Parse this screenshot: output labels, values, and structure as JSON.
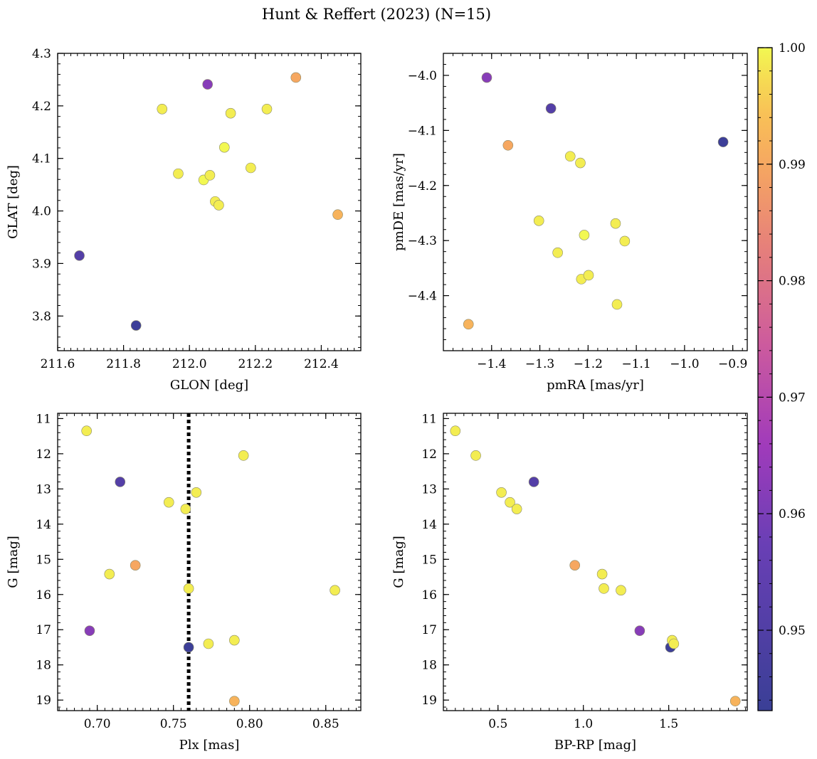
{
  "figure": {
    "title": "Hunt & Reffert (2023) (N=15)"
  },
  "colorbar": {
    "min": 0.9431,
    "max": 1.0,
    "ticks": [
      0.95,
      0.96,
      0.97,
      0.98,
      0.99,
      1.0
    ],
    "tick_labels": [
      "0.95",
      "0.96",
      "0.97",
      "0.98",
      "0.99",
      "1.00"
    ],
    "colormap": "plasma"
  },
  "chart_data": [
    {
      "type": "scatter",
      "xlabel": "GLON [deg]",
      "ylabel": "GLAT [deg]",
      "xlim": [
        211.6,
        212.52
      ],
      "ylim": [
        3.734,
        4.3
      ],
      "x_ticks": [
        211.6,
        211.8,
        212.0,
        212.2,
        212.4
      ],
      "x_tick_labels": [
        "211.6",
        "211.8",
        "212.0",
        "212.2",
        "212.4"
      ],
      "y_ticks": [
        3.8,
        3.9,
        4.0,
        4.1,
        4.2,
        4.3
      ],
      "y_tick_labels": [
        "3.8",
        "3.9",
        "4.0",
        "4.1",
        "4.2",
        "4.3"
      ],
      "x_minor": 0.02,
      "y_minor": 0.02,
      "y_inverted": false,
      "points": [
        {
          "x": 211.666,
          "y": 3.915,
          "c": 0.951
        },
        {
          "x": 211.838,
          "y": 3.782,
          "c": 0.944
        },
        {
          "x": 212.055,
          "y": 4.241,
          "c": 0.962
        },
        {
          "x": 212.323,
          "y": 4.254,
          "c": 0.99
        },
        {
          "x": 212.45,
          "y": 3.993,
          "c": 0.992
        },
        {
          "x": 211.917,
          "y": 4.194,
          "c": 0.999
        },
        {
          "x": 211.966,
          "y": 4.071,
          "c": 0.999
        },
        {
          "x": 212.043,
          "y": 4.059,
          "c": 1.0
        },
        {
          "x": 212.062,
          "y": 4.068,
          "c": 0.999
        },
        {
          "x": 212.078,
          "y": 4.018,
          "c": 0.999
        },
        {
          "x": 212.089,
          "y": 4.011,
          "c": 0.999
        },
        {
          "x": 212.106,
          "y": 4.121,
          "c": 1.0
        },
        {
          "x": 212.125,
          "y": 4.186,
          "c": 0.999
        },
        {
          "x": 212.186,
          "y": 4.082,
          "c": 0.999
        },
        {
          "x": 212.235,
          "y": 4.194,
          "c": 0.999
        }
      ]
    },
    {
      "type": "scatter",
      "xlabel": "pmRA [mas/yr]",
      "ylabel": "pmDE [mas/yr]",
      "xlim": [
        -1.5,
        -0.87
      ],
      "ylim": [
        -4.5,
        -3.96
      ],
      "x_ticks": [
        -1.4,
        -1.3,
        -1.2,
        -1.1,
        -1.0,
        -0.9
      ],
      "x_tick_labels": [
        "−1.4",
        "−1.3",
        "−1.2",
        "−1.1",
        "−1.0",
        "−0.9"
      ],
      "y_ticks": [
        -4.4,
        -4.3,
        -4.2,
        -4.1,
        -4.0
      ],
      "y_tick_labels": [
        "−4.4",
        "−4.3",
        "−4.2",
        "−4.1",
        "−4.0"
      ],
      "x_minor": 0.02,
      "y_minor": 0.02,
      "y_inverted": false,
      "points": [
        {
          "x": -1.41,
          "y": -4.004,
          "c": 0.962
        },
        {
          "x": -1.277,
          "y": -4.06,
          "c": 0.951
        },
        {
          "x": -0.92,
          "y": -4.121,
          "c": 0.944
        },
        {
          "x": -1.366,
          "y": -4.127,
          "c": 0.99
        },
        {
          "x": -1.448,
          "y": -4.452,
          "c": 0.992
        },
        {
          "x": -1.237,
          "y": -4.147,
          "c": 0.999
        },
        {
          "x": -1.216,
          "y": -4.159,
          "c": 0.999
        },
        {
          "x": -1.302,
          "y": -4.264,
          "c": 0.999
        },
        {
          "x": -1.263,
          "y": -4.322,
          "c": 0.999
        },
        {
          "x": -1.208,
          "y": -4.29,
          "c": 1.0
        },
        {
          "x": -1.143,
          "y": -4.269,
          "c": 0.999
        },
        {
          "x": -1.124,
          "y": -4.301,
          "c": 0.999
        },
        {
          "x": -1.214,
          "y": -4.37,
          "c": 0.999
        },
        {
          "x": -1.199,
          "y": -4.363,
          "c": 0.999
        },
        {
          "x": -1.14,
          "y": -4.416,
          "c": 0.999
        }
      ]
    },
    {
      "type": "scatter",
      "xlabel": "Plx [mas]",
      "ylabel": "G [mag]",
      "xlim": [
        0.674,
        0.873
      ],
      "ylim": [
        19.3,
        10.85
      ],
      "x_ticks": [
        0.7,
        0.75,
        0.8,
        0.85
      ],
      "x_tick_labels": [
        "0.70",
        "0.75",
        "0.80",
        "0.85"
      ],
      "y_ticks": [
        11,
        12,
        13,
        14,
        15,
        16,
        17,
        18,
        19
      ],
      "y_tick_labels": [
        "11",
        "12",
        "13",
        "14",
        "15",
        "16",
        "17",
        "18",
        "19"
      ],
      "x_minor": 0.005,
      "y_minor": 0.2,
      "y_inverted": true,
      "vline": {
        "x": 0.76,
        "style": "dotted",
        "color": "#000000"
      },
      "points": [
        {
          "x": 0.693,
          "y": 11.35,
          "c": 0.999
        },
        {
          "x": 0.796,
          "y": 12.05,
          "c": 0.999
        },
        {
          "x": 0.715,
          "y": 12.8,
          "c": 0.951
        },
        {
          "x": 0.765,
          "y": 13.1,
          "c": 0.999
        },
        {
          "x": 0.747,
          "y": 13.38,
          "c": 0.999
        },
        {
          "x": 0.758,
          "y": 13.57,
          "c": 0.999
        },
        {
          "x": 0.725,
          "y": 15.17,
          "c": 0.99
        },
        {
          "x": 0.708,
          "y": 15.42,
          "c": 0.999
        },
        {
          "x": 0.76,
          "y": 15.83,
          "c": 0.999
        },
        {
          "x": 0.856,
          "y": 15.88,
          "c": 0.999
        },
        {
          "x": 0.695,
          "y": 17.03,
          "c": 0.962
        },
        {
          "x": 0.79,
          "y": 17.3,
          "c": 0.999
        },
        {
          "x": 0.773,
          "y": 17.4,
          "c": 0.999
        },
        {
          "x": 0.76,
          "y": 17.5,
          "c": 0.944
        },
        {
          "x": 0.79,
          "y": 19.03,
          "c": 0.992
        }
      ]
    },
    {
      "type": "scatter",
      "xlabel": "BP-RP [mag]",
      "ylabel": "G [mag]",
      "xlim": [
        0.18,
        1.96
      ],
      "ylim": [
        19.3,
        10.85
      ],
      "x_ticks": [
        0.5,
        1.0,
        1.5
      ],
      "x_tick_labels": [
        "0.5",
        "1.0",
        "1.5"
      ],
      "y_ticks": [
        11,
        12,
        13,
        14,
        15,
        16,
        17,
        18,
        19
      ],
      "y_tick_labels": [
        "11",
        "12",
        "13",
        "14",
        "15",
        "16",
        "17",
        "18",
        "19"
      ],
      "x_minor": 0.05,
      "y_minor": 0.2,
      "y_inverted": true,
      "points": [
        {
          "x": 0.25,
          "y": 11.35,
          "c": 0.999
        },
        {
          "x": 0.37,
          "y": 12.05,
          "c": 0.999
        },
        {
          "x": 0.52,
          "y": 13.1,
          "c": 0.999
        },
        {
          "x": 0.57,
          "y": 13.38,
          "c": 0.999
        },
        {
          "x": 0.61,
          "y": 13.57,
          "c": 0.999
        },
        {
          "x": 0.71,
          "y": 12.8,
          "c": 0.951
        },
        {
          "x": 0.95,
          "y": 15.17,
          "c": 0.99
        },
        {
          "x": 1.11,
          "y": 15.42,
          "c": 0.999
        },
        {
          "x": 1.12,
          "y": 15.83,
          "c": 0.999
        },
        {
          "x": 1.22,
          "y": 15.88,
          "c": 0.999
        },
        {
          "x": 1.33,
          "y": 17.03,
          "c": 0.962
        },
        {
          "x": 1.51,
          "y": 17.5,
          "c": 0.944
        },
        {
          "x": 1.52,
          "y": 17.3,
          "c": 0.999
        },
        {
          "x": 1.53,
          "y": 17.4,
          "c": 0.999
        },
        {
          "x": 1.89,
          "y": 19.03,
          "c": 0.992
        }
      ]
    }
  ]
}
